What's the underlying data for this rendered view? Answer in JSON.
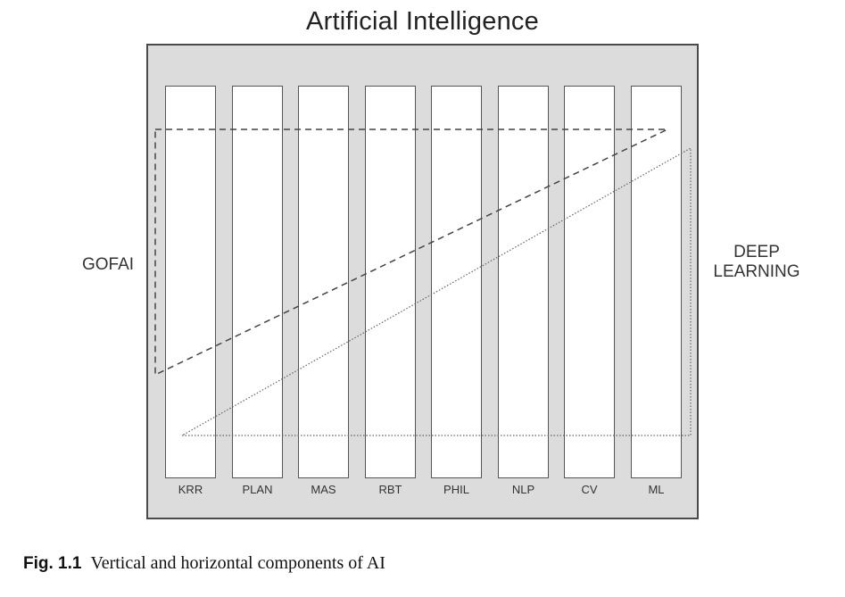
{
  "title": "Artificial Intelligence",
  "columns": [
    "KRR",
    "PLAN",
    "MAS",
    "RBT",
    "PHIL",
    "NLP",
    "CV",
    "ML"
  ],
  "left_label": "GOFAI",
  "right_label_line1": "DEEP",
  "right_label_line2": "LEARNING",
  "caption": {
    "figure": "Fig. 1.1",
    "text": "Vertical and horizontal components of AI"
  }
}
